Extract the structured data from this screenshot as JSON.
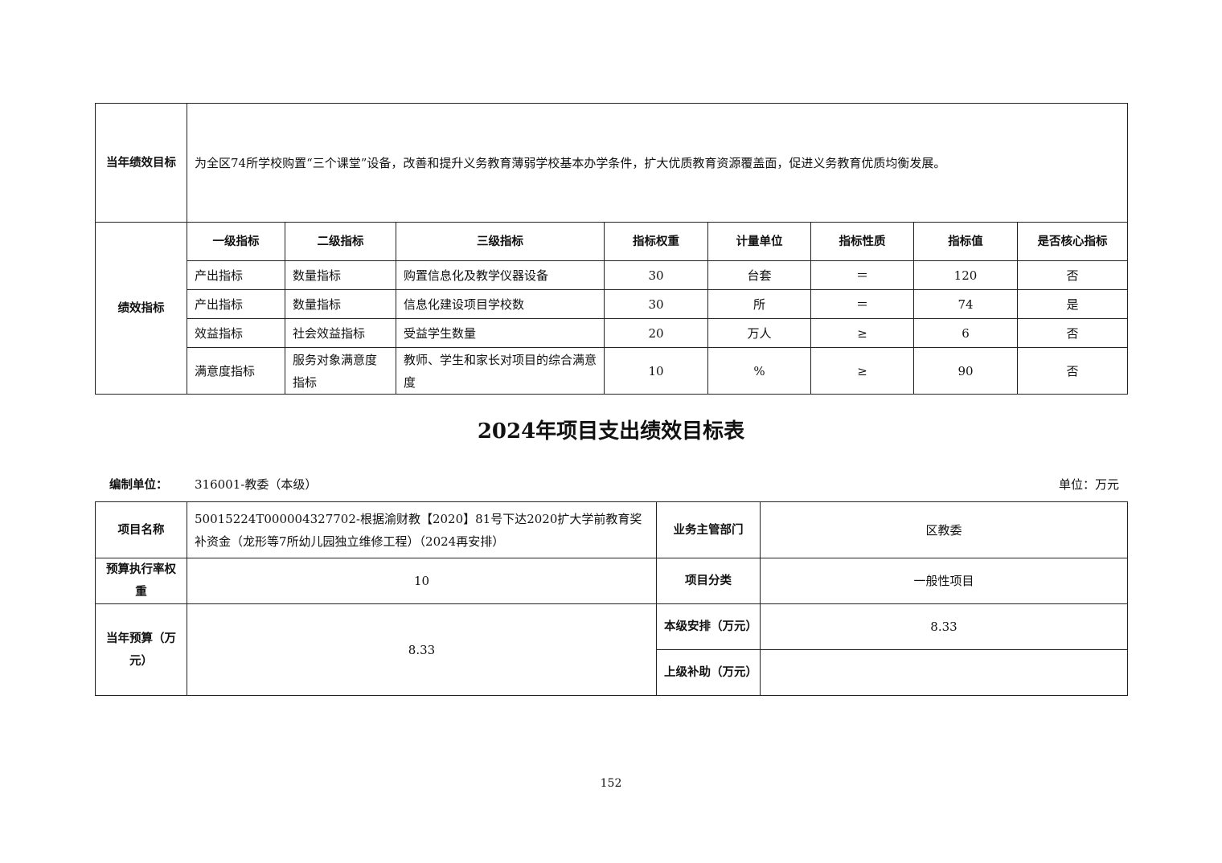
{
  "top_table": {
    "goal_label": "当年绩效目标",
    "goal_text": "为全区74所学校购置“三个课堂”设备，改善和提升义务教育薄弱学校基本办学条件，扩大优质教育资源覆盖面，促进义务教育优质均衡发展。",
    "indicators_label": "绩效指标",
    "headers": [
      "一级指标",
      "二级指标",
      "三级指标",
      "指标权重",
      "计量单位",
      "指标性质",
      "指标值",
      "是否核心指标"
    ],
    "rows": [
      [
        "产出指标",
        "数量指标",
        "购置信息化及教学仪器设备",
        "30",
        "台套",
        "＝",
        "120",
        "否"
      ],
      [
        "产出指标",
        "数量指标",
        "信息化建设项目学校数",
        "30",
        "所",
        "＝",
        "74",
        "是"
      ],
      [
        "效益指标",
        "社会效益指标",
        "受益学生数量",
        "20",
        "万人",
        "≥",
        "6",
        "否"
      ],
      [
        "满意度指标",
        "服务对象满意度指标",
        "教师、学生和家长对项目的综合满意度",
        "10",
        "%",
        "≥",
        "90",
        "否"
      ]
    ]
  },
  "title": "2024年项目支出绩效目标表",
  "unit_line": {
    "org_label": "编制单位：",
    "org_value": "316001-教委（本级）",
    "unit": "单位：万元"
  },
  "project_table": {
    "name_label": "项目名称",
    "name_value": "50015224T000004327702-根据渝财教【2020】81号下达2020扩大学前教育奖补资金（龙形等7所幼儿园独立维修工程）（2024再安排）",
    "dept_label": "业务主管部门",
    "dept_value": "区教委",
    "rate_label": "预算执行率权重",
    "rate_value": "10",
    "category_label": "项目分类",
    "category_value": "一般性项目",
    "budget_label": "当年预算（万元）",
    "budget_value": "8.33",
    "local_label": "本级安排（万元）",
    "local_value": "8.33",
    "upper_label": "上级补助（万元）",
    "upper_value": ""
  },
  "page_number": "152"
}
